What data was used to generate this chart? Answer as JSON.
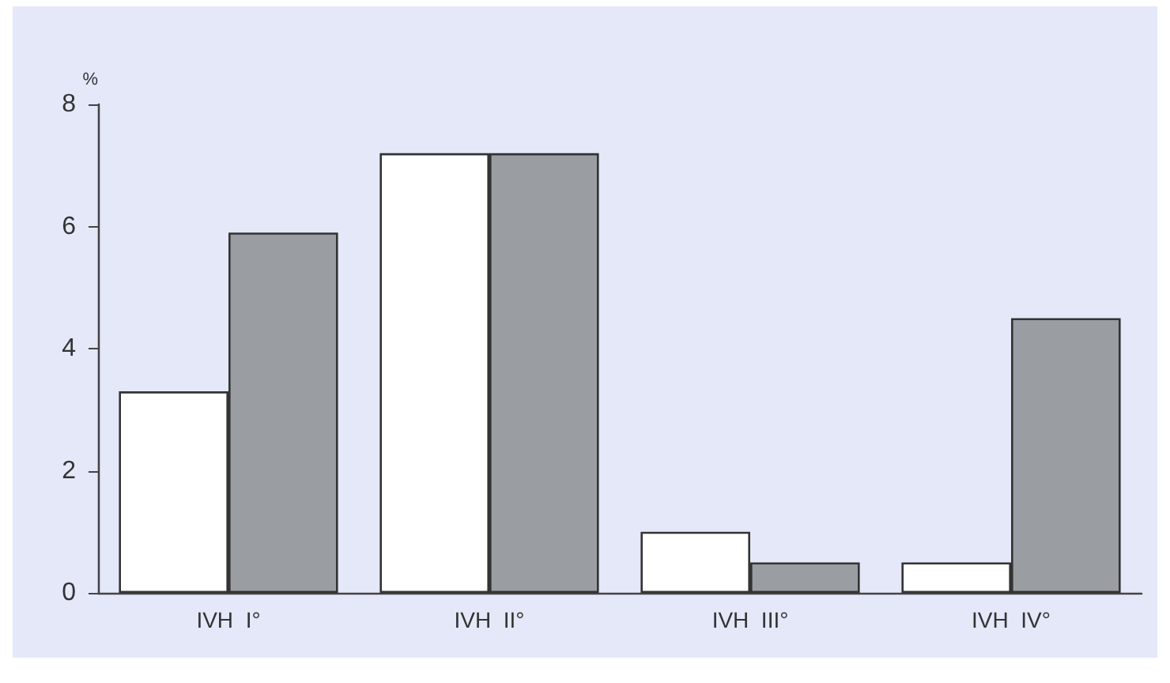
{
  "chart_data": {
    "type": "bar",
    "ylabel": "%",
    "categories": [
      "IVH  I°",
      "IVH  II°",
      "IVH  III°",
      "IVH  IV°"
    ],
    "series": [
      {
        "color": "#ffffff",
        "values": [
          3.3,
          7.2,
          1.0,
          0.5
        ]
      },
      {
        "color": "#9a9da2",
        "values": [
          5.9,
          7.2,
          0.5,
          4.5
        ]
      }
    ],
    "ylim": [
      0,
      8
    ],
    "yticks": [
      0,
      2,
      4,
      6,
      8
    ],
    "grid": false
  }
}
